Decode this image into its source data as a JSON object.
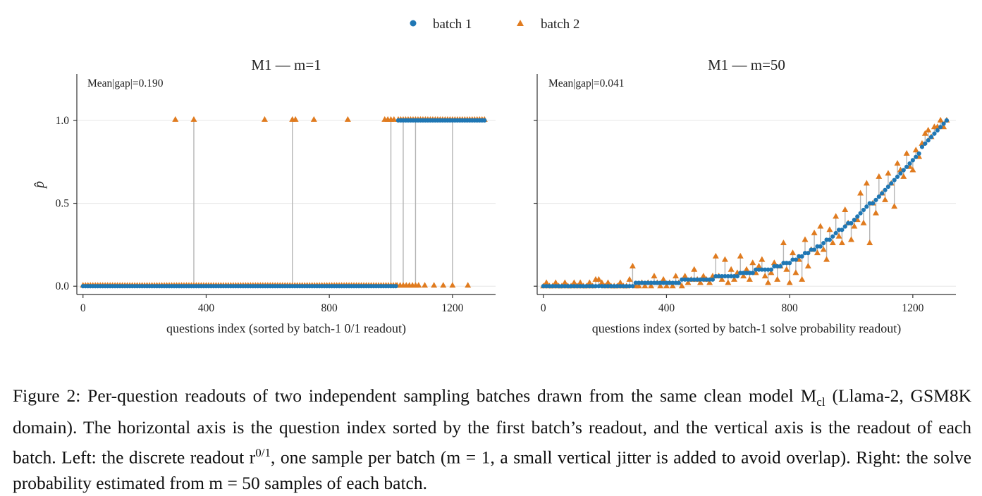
{
  "legend": {
    "items": [
      {
        "label": "batch 1",
        "color": "#1f77b4",
        "marker": "circle"
      },
      {
        "label": "batch 2",
        "color": "#e07b1f",
        "marker": "triangle"
      }
    ],
    "placement": "top-center"
  },
  "chart_data": [
    {
      "type": "scatter",
      "title": "M1 — m=1",
      "annotation": "Mean|gap|=0.190",
      "xlabel": "questions index (sorted by batch-1 0/1 readout)",
      "ylabel": "p̂",
      "xlim": [
        -20,
        1340
      ],
      "ylim": [
        -0.05,
        1.28
      ],
      "xticks": [
        0,
        400,
        800,
        1200
      ],
      "yticks": [
        0.0,
        0.5,
        1.0
      ],
      "ytick_labels": [
        "0.0",
        "0.5",
        "1.0"
      ],
      "grid": "horizontal",
      "series": [
        {
          "name": "batch 1",
          "marker": "circle",
          "color": "#1f77b4",
          "x_start": 0,
          "x_end": 1310,
          "x_step": 8,
          "switch_at": 1020,
          "before": 0.0,
          "after": 1.0
        },
        {
          "name": "batch 2",
          "marker": "triangle",
          "color": "#e07b1f",
          "x_start": 0,
          "x_end": 1310,
          "x_step": 8,
          "switch_at": 1020,
          "before": 0.0,
          "after": 1.0,
          "ones_before_switch": [
            300,
            360,
            590,
            680,
            690,
            750,
            860,
            980,
            990,
            1000,
            1010
          ],
          "zeros_after_switch": [
            1020,
            1030,
            1040,
            1050,
            1060,
            1070,
            1080,
            1090,
            1110,
            1140,
            1170,
            1200,
            1250
          ]
        }
      ]
    },
    {
      "type": "scatter",
      "title": "M1 — m=50",
      "annotation": "Mean|gap|=0.041",
      "xlabel": "questions index (sorted by batch-1 solve probability readout)",
      "ylabel": "",
      "xlim": [
        -20,
        1340
      ],
      "ylim": [
        -0.05,
        1.28
      ],
      "xticks": [
        0,
        400,
        800,
        1200
      ],
      "yticks": [
        0.0,
        0.5,
        1.0
      ],
      "ytick_labels": [
        "",
        "",
        ""
      ],
      "grid": "horizontal",
      "series": [
        {
          "name": "batch 1",
          "marker": "circle",
          "color": "#1f77b4",
          "x": [
            0,
            10,
            20,
            30,
            40,
            50,
            60,
            70,
            80,
            90,
            100,
            110,
            120,
            130,
            140,
            150,
            160,
            170,
            180,
            190,
            200,
            210,
            220,
            230,
            240,
            250,
            260,
            270,
            280,
            290,
            300,
            310,
            320,
            330,
            340,
            350,
            360,
            370,
            380,
            390,
            400,
            410,
            420,
            430,
            440,
            450,
            460,
            470,
            480,
            490,
            500,
            510,
            520,
            530,
            540,
            550,
            560,
            570,
            580,
            590,
            600,
            610,
            620,
            630,
            640,
            650,
            660,
            670,
            680,
            690,
            700,
            710,
            720,
            730,
            740,
            750,
            760,
            770,
            780,
            790,
            800,
            810,
            820,
            830,
            840,
            850,
            860,
            870,
            880,
            890,
            900,
            910,
            920,
            930,
            940,
            950,
            960,
            970,
            980,
            990,
            1000,
            1010,
            1020,
            1030,
            1040,
            1050,
            1060,
            1070,
            1080,
            1090,
            1100,
            1110,
            1120,
            1130,
            1140,
            1150,
            1160,
            1170,
            1180,
            1190,
            1200,
            1210,
            1220,
            1230,
            1240,
            1250,
            1260,
            1270,
            1280,
            1290,
            1300,
            1310
          ],
          "y": [
            0,
            0,
            0,
            0,
            0,
            0,
            0,
            0,
            0,
            0,
            0,
            0,
            0,
            0,
            0,
            0,
            0,
            0,
            0,
            0,
            0,
            0,
            0,
            0,
            0,
            0,
            0,
            0,
            0,
            0,
            0.02,
            0.02,
            0.02,
            0.02,
            0.02,
            0.02,
            0.02,
            0.02,
            0.02,
            0.02,
            0.02,
            0.02,
            0.02,
            0.02,
            0.02,
            0.04,
            0.04,
            0.04,
            0.04,
            0.04,
            0.04,
            0.04,
            0.04,
            0.04,
            0.04,
            0.04,
            0.06,
            0.06,
            0.06,
            0.06,
            0.06,
            0.06,
            0.06,
            0.06,
            0.08,
            0.08,
            0.08,
            0.08,
            0.08,
            0.1,
            0.1,
            0.1,
            0.1,
            0.1,
            0.1,
            0.12,
            0.12,
            0.12,
            0.14,
            0.14,
            0.14,
            0.16,
            0.16,
            0.18,
            0.18,
            0.2,
            0.2,
            0.22,
            0.22,
            0.24,
            0.24,
            0.26,
            0.28,
            0.28,
            0.3,
            0.32,
            0.34,
            0.34,
            0.36,
            0.38,
            0.38,
            0.4,
            0.42,
            0.44,
            0.46,
            0.48,
            0.5,
            0.5,
            0.52,
            0.54,
            0.56,
            0.58,
            0.6,
            0.62,
            0.64,
            0.66,
            0.68,
            0.7,
            0.72,
            0.74,
            0.76,
            0.78,
            0.8,
            0.84,
            0.86,
            0.88,
            0.9,
            0.92,
            0.94,
            0.96,
            0.98,
            1.0
          ]
        },
        {
          "name": "batch 2",
          "marker": "triangle",
          "color": "#e07b1f",
          "x": [
            0,
            10,
            20,
            30,
            40,
            50,
            60,
            70,
            80,
            90,
            100,
            110,
            120,
            130,
            140,
            150,
            160,
            170,
            180,
            190,
            200,
            210,
            220,
            230,
            240,
            250,
            260,
            270,
            280,
            290,
            300,
            310,
            320,
            330,
            340,
            350,
            360,
            370,
            380,
            390,
            400,
            410,
            420,
            430,
            440,
            450,
            460,
            470,
            480,
            490,
            500,
            510,
            520,
            530,
            540,
            550,
            560,
            570,
            580,
            590,
            600,
            610,
            620,
            630,
            640,
            650,
            660,
            670,
            680,
            690,
            700,
            710,
            720,
            730,
            740,
            750,
            760,
            770,
            780,
            790,
            800,
            810,
            820,
            830,
            840,
            850,
            860,
            870,
            880,
            890,
            900,
            910,
            920,
            930,
            940,
            950,
            960,
            970,
            980,
            990,
            1000,
            1010,
            1020,
            1030,
            1040,
            1050,
            1060,
            1070,
            1080,
            1090,
            1100,
            1110,
            1120,
            1130,
            1140,
            1150,
            1160,
            1170,
            1180,
            1190,
            1200,
            1210,
            1220,
            1230,
            1240,
            1250,
            1260,
            1270,
            1280,
            1290,
            1300,
            1310
          ],
          "y": [
            0,
            0.02,
            0,
            0,
            0.02,
            0,
            0,
            0.02,
            0,
            0,
            0.02,
            0,
            0.02,
            0,
            0,
            0.02,
            0,
            0.04,
            0.04,
            0.02,
            0,
            0.02,
            0,
            0,
            0,
            0.02,
            0,
            0,
            0.04,
            0.12,
            0,
            0,
            0.02,
            0,
            0.02,
            0,
            0.06,
            0.02,
            0,
            0.04,
            0,
            0.02,
            0,
            0.06,
            0.02,
            0,
            0.06,
            0.02,
            0.04,
            0.1,
            0.04,
            0.02,
            0.06,
            0.04,
            0.02,
            0.06,
            0.18,
            0.06,
            0.04,
            0.16,
            0.02,
            0.1,
            0.04,
            0.08,
            0.18,
            0.06,
            0.1,
            0.04,
            0.14,
            0.08,
            0.12,
            0.16,
            0.06,
            0.02,
            0.08,
            0.14,
            0.04,
            0.12,
            0.26,
            0.1,
            0.02,
            0.2,
            0.08,
            0.16,
            0.04,
            0.28,
            0.12,
            0.22,
            0.32,
            0.2,
            0.36,
            0.22,
            0.16,
            0.34,
            0.26,
            0.42,
            0.3,
            0.26,
            0.46,
            0.38,
            0.28,
            0.36,
            0.4,
            0.56,
            0.38,
            0.62,
            0.26,
            0.5,
            0.44,
            0.66,
            0.56,
            0.52,
            0.68,
            0.62,
            0.48,
            0.74,
            0.7,
            0.66,
            0.8,
            0.72,
            0.7,
            0.82,
            0.78,
            0.86,
            0.92,
            0.94,
            0.9,
            0.96,
            0.96,
            1.0,
            0.96,
            1.0
          ]
        }
      ]
    }
  ],
  "caption": {
    "lines": [
      "Figure 2: Per-question readouts of two independent sampling batches drawn from the same clean model M",
      "(Llama-2, GSM8K domain). The horizontal axis is the question index sorted by the first batch’s readout, and the",
      "vertical axis is the readout of each batch. Left: the discrete readout r",
      ", one sample per batch (m = 1, a small",
      "vertical jitter is added to avoid overlap). Right: the solve probability estimated from m = 50 samples of each batch."
    ],
    "subscript_cl": "cl",
    "superscript": "0/1"
  }
}
